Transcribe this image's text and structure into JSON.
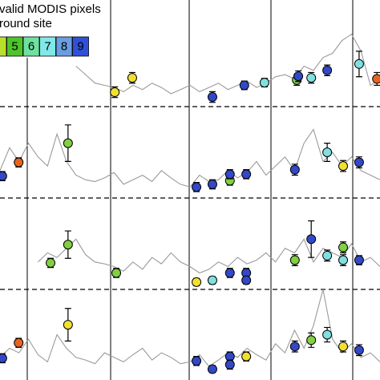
{
  "chart_data": [
    {
      "type": "line",
      "color": "#9a9a9a",
      "xlim": [
        0,
        100
      ],
      "ylim": [
        0,
        100
      ],
      "x": [
        0,
        2.5,
        5,
        7.5,
        10,
        12.5,
        15,
        17.5,
        20,
        22.5,
        25,
        27.5,
        30,
        32.5,
        35,
        37.5,
        40,
        42.5,
        45,
        47.5,
        50,
        52.5,
        55,
        57.5,
        60,
        62.5,
        65,
        67.5,
        70,
        72.5,
        75,
        77.5,
        80,
        82.5,
        85,
        87.5,
        90,
        92.5,
        95,
        97.5,
        100
      ],
      "values": [
        null,
        null,
        null,
        null,
        null,
        null,
        null,
        null,
        38,
        30,
        22,
        20,
        18,
        14,
        20,
        16,
        22,
        18,
        12,
        16,
        20,
        14,
        18,
        22,
        16,
        20,
        24,
        18,
        22,
        28,
        30,
        26,
        38,
        34,
        46,
        50,
        62,
        68,
        52,
        20,
        26
      ],
      "points": {
        "x": [
          30.2,
          34.8,
          55.9,
          64.3,
          69.6,
          78.1,
          78.5,
          81.9,
          86.1,
          94.5,
          99.2
        ],
        "values": [
          13.5,
          27,
          9,
          20,
          22.5,
          25,
          28.5,
          27,
          34,
          40,
          26
        ],
        "errors": [
          5,
          5,
          5,
          4,
          4,
          5,
          5,
          5,
          5,
          12,
          6
        ],
        "colors": [
          "#f2e030",
          "#f2e030",
          "#3348c8",
          "#3348c8",
          "#80e0e0",
          "#80d040",
          "#3348c8",
          "#80e0e0",
          "#3348c8",
          "#80e0e0",
          "#e8641e"
        ]
      },
      "legend": {
        "texts": [
          "valid MODIS pixels",
          "round site"
        ],
        "labels": [
          null,
          5,
          6,
          7,
          8,
          9
        ],
        "colors": [
          "#b8e02a",
          "#4ec42c",
          "#6ee0a0",
          "#80e8e8",
          "#6a9ee0",
          "#3050d8"
        ]
      }
    },
    {
      "type": "line",
      "color": "#9a9a9a",
      "xlim": [
        0,
        100
      ],
      "ylim": [
        0,
        100
      ],
      "x": [
        0,
        2.5,
        5,
        7.5,
        10,
        12.5,
        15,
        17.5,
        20,
        22.5,
        25,
        27.5,
        30,
        32.5,
        35,
        37.5,
        40,
        42.5,
        45,
        47.5,
        50,
        52.5,
        55,
        57.5,
        60,
        62.5,
        65,
        67.5,
        70,
        72.5,
        75,
        77.5,
        80,
        82.5,
        85,
        87.5,
        90,
        92.5,
        95,
        97.5,
        100
      ],
      "values": [
        30,
        55,
        40,
        60,
        45,
        35,
        70,
        40,
        25,
        20,
        18,
        22,
        28,
        15,
        20,
        25,
        18,
        30,
        22,
        15,
        12,
        25,
        18,
        20,
        30,
        22,
        28,
        40,
        25,
        35,
        45,
        30,
        60,
        75,
        40,
        50,
        35,
        45,
        30,
        25,
        20
      ],
      "points": {
        "x": [
          0.6,
          4.9,
          17.9,
          51.7,
          55.9,
          60.5,
          60.5,
          64.8,
          77.6,
          86.1,
          90.3,
          94.5
        ],
        "values": [
          24,
          39,
          60,
          12,
          15,
          19,
          26,
          26,
          31,
          50,
          35,
          39
        ],
        "errors": [
          5,
          5,
          20,
          5,
          5,
          5,
          5,
          5,
          6,
          10,
          6,
          6
        ],
        "colors": [
          "#3348c8",
          "#e8641e",
          "#80d040",
          "#3348c8",
          "#3348c8",
          "#80d040",
          "#3348c8",
          "#3348c8",
          "#3348c8",
          "#80e0e0",
          "#f2e030",
          "#3348c8"
        ]
      }
    },
    {
      "type": "line",
      "color": "#9a9a9a",
      "xlim": [
        0,
        100
      ],
      "ylim": [
        0,
        100
      ],
      "x": [
        0,
        2.5,
        5,
        7.5,
        10,
        12.5,
        15,
        17.5,
        20,
        22.5,
        25,
        27.5,
        30,
        32.5,
        35,
        37.5,
        40,
        42.5,
        45,
        47.5,
        50,
        52.5,
        55,
        57.5,
        60,
        62.5,
        65,
        67.5,
        70,
        72.5,
        75,
        77.5,
        80,
        82.5,
        85,
        87.5,
        90,
        92.5,
        95,
        97.5,
        100
      ],
      "values": [
        null,
        null,
        null,
        null,
        30,
        40,
        35,
        45,
        55,
        38,
        30,
        28,
        25,
        20,
        30,
        22,
        35,
        28,
        40,
        30,
        25,
        18,
        22,
        30,
        25,
        35,
        28,
        32,
        40,
        30,
        45,
        40,
        55,
        30,
        45,
        40,
        35,
        50,
        30,
        35,
        25
      ],
      "points": {
        "x": [
          13.3,
          17.9,
          30.6,
          51.7,
          55.9,
          60.5,
          64.8,
          64.8,
          77.6,
          81.9,
          86.1,
          90.3,
          90.3,
          94.5
        ],
        "values": [
          29,
          49,
          18,
          8,
          10,
          18,
          18,
          10,
          32,
          55,
          37,
          32,
          46,
          32
        ],
        "errors": [
          5,
          15,
          5,
          4,
          4,
          5,
          5,
          4,
          6,
          20,
          6,
          6,
          6,
          5
        ],
        "colors": [
          "#80d040",
          "#80d040",
          "#80d040",
          "#f2e030",
          "#80e0e0",
          "#3348c8",
          "#3348c8",
          "#3348c8",
          "#80d040",
          "#3348c8",
          "#80e0e0",
          "#80e0e0",
          "#80d040",
          "#3348c8"
        ]
      }
    },
    {
      "type": "line",
      "color": "#9a9a9a",
      "xlim": [
        0,
        100
      ],
      "ylim": [
        0,
        100
      ],
      "x": [
        0,
        2.5,
        5,
        7.5,
        10,
        12.5,
        15,
        17.5,
        20,
        22.5,
        25,
        27.5,
        30,
        32.5,
        35,
        37.5,
        40,
        42.5,
        45,
        47.5,
        50,
        52.5,
        55,
        57.5,
        60,
        62.5,
        65,
        67.5,
        70,
        72.5,
        75,
        77.5,
        80,
        82.5,
        85,
        87.5,
        90,
        92.5,
        95,
        97.5,
        100
      ],
      "values": [
        25,
        35,
        30,
        45,
        28,
        20,
        50,
        35,
        25,
        22,
        18,
        30,
        25,
        20,
        28,
        35,
        22,
        30,
        25,
        18,
        20,
        28,
        15,
        22,
        30,
        25,
        35,
        28,
        22,
        40,
        30,
        55,
        35,
        60,
        100,
        45,
        30,
        40,
        25,
        30,
        20
      ],
      "points": {
        "x": [
          0.6,
          4.9,
          17.9,
          51.7,
          55.9,
          60.5,
          60.5,
          64.8,
          77.6,
          81.9,
          86.1,
          90.3,
          94.5
        ],
        "values": [
          24,
          41,
          61,
          21,
          12,
          26,
          17,
          26,
          37,
          44,
          50,
          37,
          33
        ],
        "errors": [
          5,
          5,
          18,
          5,
          4,
          5,
          5,
          5,
          6,
          8,
          8,
          6,
          6
        ],
        "colors": [
          "#3348c8",
          "#e8641e",
          "#f2e030",
          "#3348c8",
          "#3348c8",
          "#3348c8",
          "#3348c8",
          "#f2e030",
          "#3348c8",
          "#80d040",
          "#80e0e0",
          "#f2e030",
          "#3348c8"
        ]
      }
    }
  ]
}
